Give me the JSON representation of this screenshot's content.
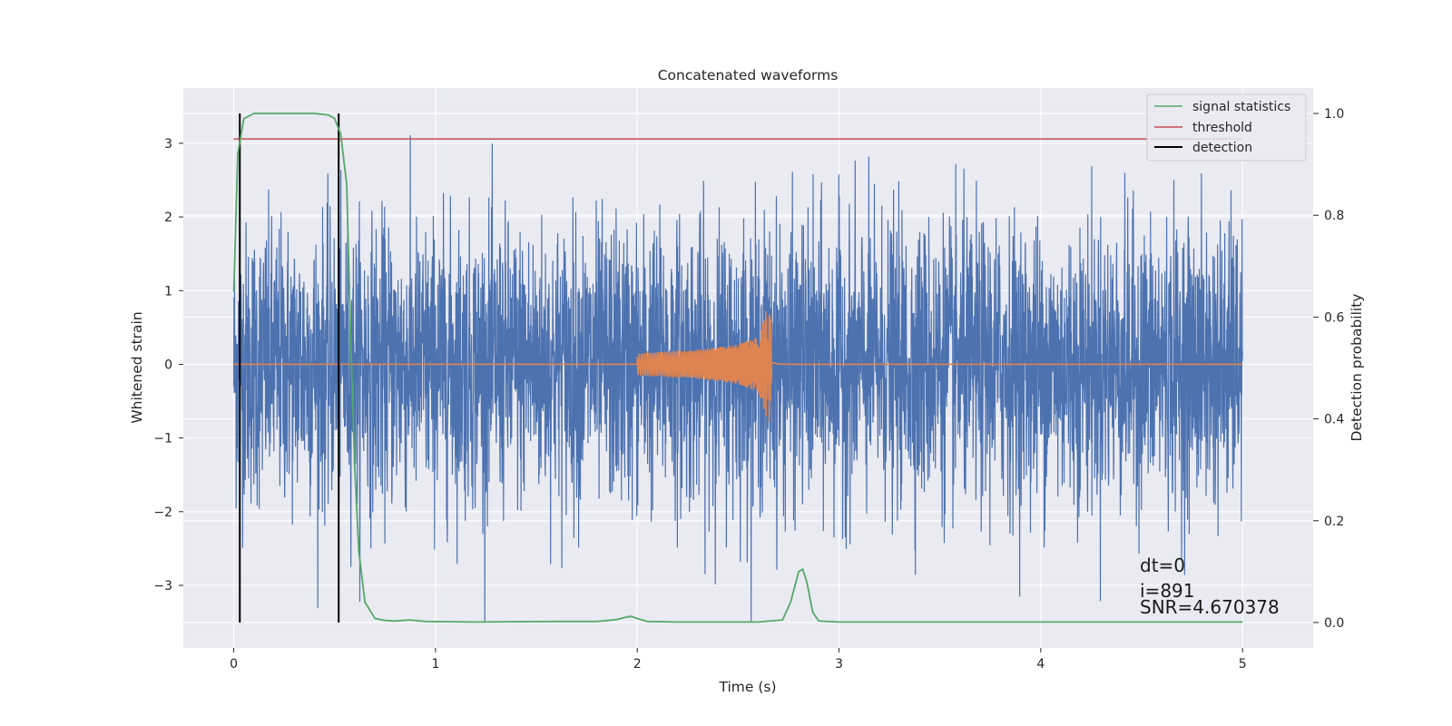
{
  "chart_data": {
    "type": "line",
    "title": "Concatenated waveforms",
    "xlabel": "Time (s)",
    "ylabel": "Whitened strain",
    "y2label": "Detection probability",
    "xlim": [
      -0.25,
      5.35
    ],
    "ylim": [
      -3.85,
      3.75
    ],
    "y2lim": [
      -0.05,
      1.05
    ],
    "xticks": [
      0,
      1,
      2,
      3,
      4,
      5
    ],
    "xtick_labels": [
      "0",
      "1",
      "2",
      "3",
      "4",
      "5"
    ],
    "yticks": [
      3,
      2,
      1,
      0,
      -1,
      -2,
      -3
    ],
    "ytick_labels": [
      "3",
      "2",
      "1",
      "0",
      "−1",
      "−2",
      "−3"
    ],
    "y2ticks": [
      1.0,
      0.8,
      0.6,
      0.4,
      0.2,
      0.0
    ],
    "y2tick_labels": [
      "1.0",
      "0.8",
      "0.6",
      "0.4",
      "0.2",
      "0.0"
    ],
    "grid": true,
    "legend_position": "top-right",
    "colors": {
      "background": "#eaeaf2",
      "grid": "#ffffff",
      "strain": "#4c72b0",
      "template": "#dd8452",
      "signal_statistics": "#55a868",
      "threshold": "#c44e52",
      "detection": "#000000"
    },
    "series": [
      {
        "key": "strain",
        "axis": "left",
        "description_of_shape": "whitened noise, about 5000 samples in 0 to 5 s, typical amplitude about 1, occasional spikes to about 3.4",
        "x_range": [
          0,
          5
        ],
        "peak_min": -3.5,
        "peak_max": 3.4
      },
      {
        "key": "template",
        "axis": "left",
        "x": [
          0,
          1.99,
          2.0,
          2.3,
          2.5,
          2.6,
          2.65,
          2.67,
          2.7,
          2.8,
          5.0
        ],
        "amplitude": [
          0,
          0,
          0.15,
          0.2,
          0.27,
          0.38,
          0.85,
          0.6,
          0.05,
          0.0,
          0
        ]
      },
      {
        "name": "signal statistics",
        "key": "signal_statistics",
        "axis": "right",
        "x": [
          0.0,
          0.02,
          0.05,
          0.1,
          0.15,
          0.2,
          0.3,
          0.4,
          0.47,
          0.5,
          0.53,
          0.56,
          0.58,
          0.6,
          0.62,
          0.65,
          0.7,
          0.75,
          0.8,
          0.87,
          0.95,
          1.2,
          1.6,
          1.8,
          1.9,
          1.95,
          1.97,
          2.0,
          2.05,
          2.2,
          2.6,
          2.72,
          2.76,
          2.8,
          2.82,
          2.84,
          2.87,
          2.9,
          3.0,
          3.5,
          4.0,
          4.5,
          5.0
        ],
        "y": [
          0.65,
          0.92,
          0.99,
          1.0,
          1.0,
          1.0,
          1.0,
          1.0,
          0.997,
          0.99,
          0.96,
          0.86,
          0.55,
          0.3,
          0.14,
          0.04,
          0.008,
          0.004,
          0.003,
          0.005,
          0.002,
          0.001,
          0.002,
          0.002,
          0.006,
          0.011,
          0.012,
          0.008,
          0.002,
          0.001,
          0.001,
          0.005,
          0.04,
          0.1,
          0.105,
          0.08,
          0.02,
          0.003,
          0.001,
          0.001,
          0.001,
          0.001,
          0.001
        ]
      },
      {
        "name": "threshold",
        "key": "threshold",
        "axis": "right",
        "x": [
          0.0,
          5.0
        ],
        "y": [
          0.95,
          0.95
        ]
      },
      {
        "name": "detection",
        "key": "detection",
        "axis": "right",
        "x": [
          0.03,
          0.52
        ],
        "y_range": [
          0,
          1
        ]
      }
    ],
    "annotations": [
      "dt=0",
      "i=891",
      "SNR=4.670378"
    ]
  }
}
